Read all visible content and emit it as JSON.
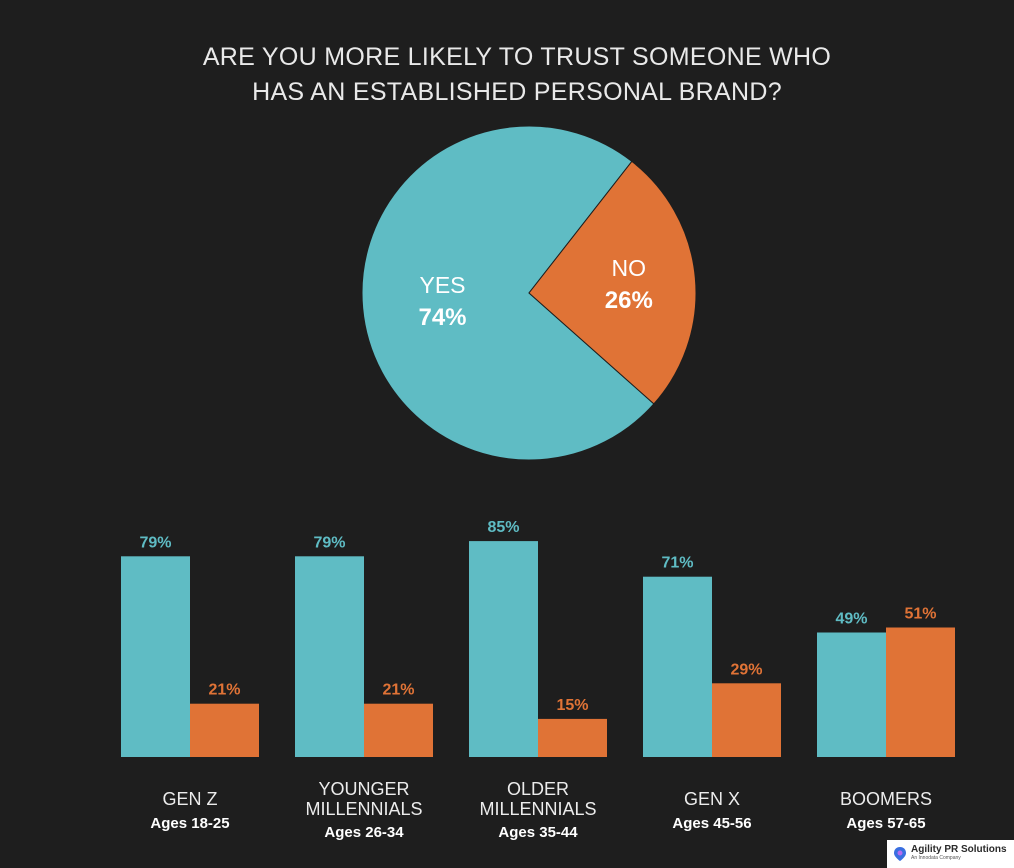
{
  "colors": {
    "yes": "#5fbcc4",
    "no": "#e07336",
    "background": "#1e1e1e"
  },
  "chart_data": [
    {
      "type": "pie",
      "title_lines": [
        "ARE YOU MORE LIKELY TO TRUST SOMEONE WHO",
        "HAS AN ESTABLISHED PERSONAL BRAND?"
      ],
      "slices": [
        {
          "name": "YES",
          "value": 74,
          "label": "74%"
        },
        {
          "name": "NO",
          "value": 26,
          "label": "26%"
        }
      ]
    },
    {
      "type": "bar",
      "categories": [
        {
          "name_lines": [
            "GEN Z"
          ],
          "age": "Ages 18-25"
        },
        {
          "name_lines": [
            "YOUNGER",
            "MILLENNIALS"
          ],
          "age": "Ages 26-34"
        },
        {
          "name_lines": [
            "OLDER",
            "MILLENNIALS"
          ],
          "age": "Ages 35-44"
        },
        {
          "name_lines": [
            "GEN X"
          ],
          "age": "Ages 45-56"
        },
        {
          "name_lines": [
            "BOOMERS"
          ],
          "age": "Ages 57-65"
        }
      ],
      "series": [
        {
          "values": [
            79,
            79,
            85,
            71,
            49
          ],
          "labels": [
            "79%",
            "79%",
            "85%",
            "71%",
            "49%"
          ]
        },
        {
          "values": [
            21,
            21,
            15,
            29,
            51
          ],
          "labels": [
            "21%",
            "21%",
            "15%",
            "29%",
            "51%"
          ]
        }
      ],
      "ylim": [
        0,
        100
      ]
    }
  ],
  "logo": {
    "name": "Agility PR Solutions",
    "tagline": "An Innodata Company"
  }
}
